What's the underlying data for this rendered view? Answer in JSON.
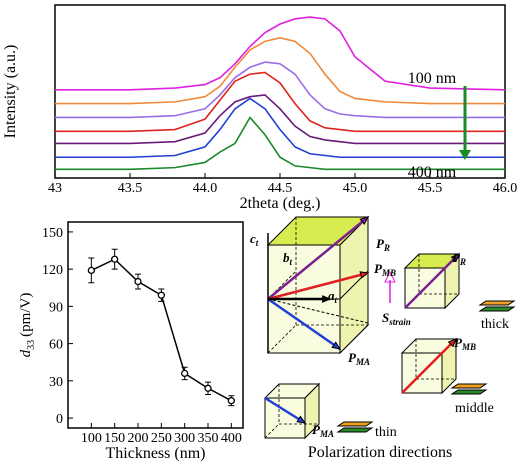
{
  "chart_data": [
    {
      "type": "line",
      "x_label": "2theta (deg.)",
      "y_label": "Intensity (a.u.)",
      "x": [
        43,
        43.5,
        43.8,
        44,
        44.1,
        44.2,
        44.3,
        44.4,
        44.5,
        44.6,
        44.7,
        44.8,
        44.9,
        45,
        45.2,
        45.5,
        46
      ],
      "xlim": [
        43,
        46
      ],
      "xticks": [
        43,
        43.5,
        {
          "value": 44,
          "label": "44.0"
        },
        44.5,
        {
          "value": 45,
          "label": "45.0"
        },
        45.5,
        {
          "value": 46,
          "label": "46.0"
        }
      ],
      "ylim": [
        0,
        100
      ],
      "series": [
        {
          "color": "#1a8a2a",
          "values": [
            5,
            5,
            6,
            9,
            15,
            20,
            35,
            25,
            12,
            7,
            6,
            5,
            5,
            5,
            5,
            5,
            5
          ]
        },
        {
          "color": "#1f3fd6",
          "values": [
            12,
            12,
            13,
            18,
            28,
            40,
            46,
            40,
            28,
            18,
            14,
            13,
            12,
            12,
            12,
            12,
            12
          ]
        },
        {
          "color": "#6a1a7a",
          "values": [
            20,
            20,
            21,
            26,
            36,
            44,
            47,
            48,
            40,
            30,
            24,
            22,
            21,
            20,
            20,
            20,
            20
          ]
        },
        {
          "color": "#e0241e",
          "values": [
            27,
            27,
            28,
            34,
            45,
            56,
            60,
            61,
            55,
            43,
            33,
            29,
            28,
            27,
            27,
            27,
            27
          ]
        },
        {
          "color": "#9a6ee8",
          "values": [
            35,
            35,
            36,
            40,
            48,
            58,
            64,
            67,
            66,
            60,
            48,
            40,
            37,
            36,
            35,
            35,
            35
          ]
        },
        {
          "color": "#f08a3a",
          "values": [
            43,
            43,
            44,
            47,
            53,
            64,
            74,
            79,
            81,
            79,
            72,
            60,
            50,
            46,
            44,
            43,
            43
          ]
        },
        {
          "color": "#e020e0",
          "values": [
            51,
            51,
            52,
            54,
            58,
            66,
            76,
            84,
            89,
            92,
            93,
            92,
            85,
            70,
            56,
            52,
            51
          ]
        }
      ],
      "annotations": [
        "100 nm",
        "400 nm"
      ]
    },
    {
      "type": "errorline",
      "x_label": "Thickness (nm)",
      "y_label": [
        "d",
        "33",
        "(pm/V)"
      ],
      "x": [
        100,
        150,
        200,
        250,
        300,
        350,
        400
      ],
      "values": [
        119,
        128,
        110,
        99,
        36,
        24,
        14
      ],
      "errors": [
        10,
        8,
        6,
        5,
        5,
        5,
        4
      ],
      "color": "#000000",
      "xlim": [
        50,
        425
      ],
      "xticks": [
        100,
        150,
        200,
        250,
        300,
        350,
        400
      ],
      "ylim": [
        -8,
        158
      ],
      "yticks": [
        0,
        30,
        60,
        90,
        120,
        150
      ]
    }
  ],
  "diagram": {
    "labels": {
      "pr": [
        "P",
        "R"
      ],
      "pmb": [
        "P",
        "MB"
      ],
      "ct": [
        "c",
        "t"
      ],
      "bt": [
        "b",
        "t"
      ],
      "at": [
        "a",
        "t"
      ],
      "sstrain": [
        "S",
        "strain"
      ],
      "pma": [
        "P",
        "MA"
      ],
      "pr2": [
        "P",
        "R"
      ],
      "pmb2": [
        "P",
        "MB"
      ],
      "pma2": [
        "P",
        "MA"
      ]
    },
    "thick": "thick",
    "middle": "middle",
    "thin": "thin",
    "caption": "Polarization directions"
  }
}
